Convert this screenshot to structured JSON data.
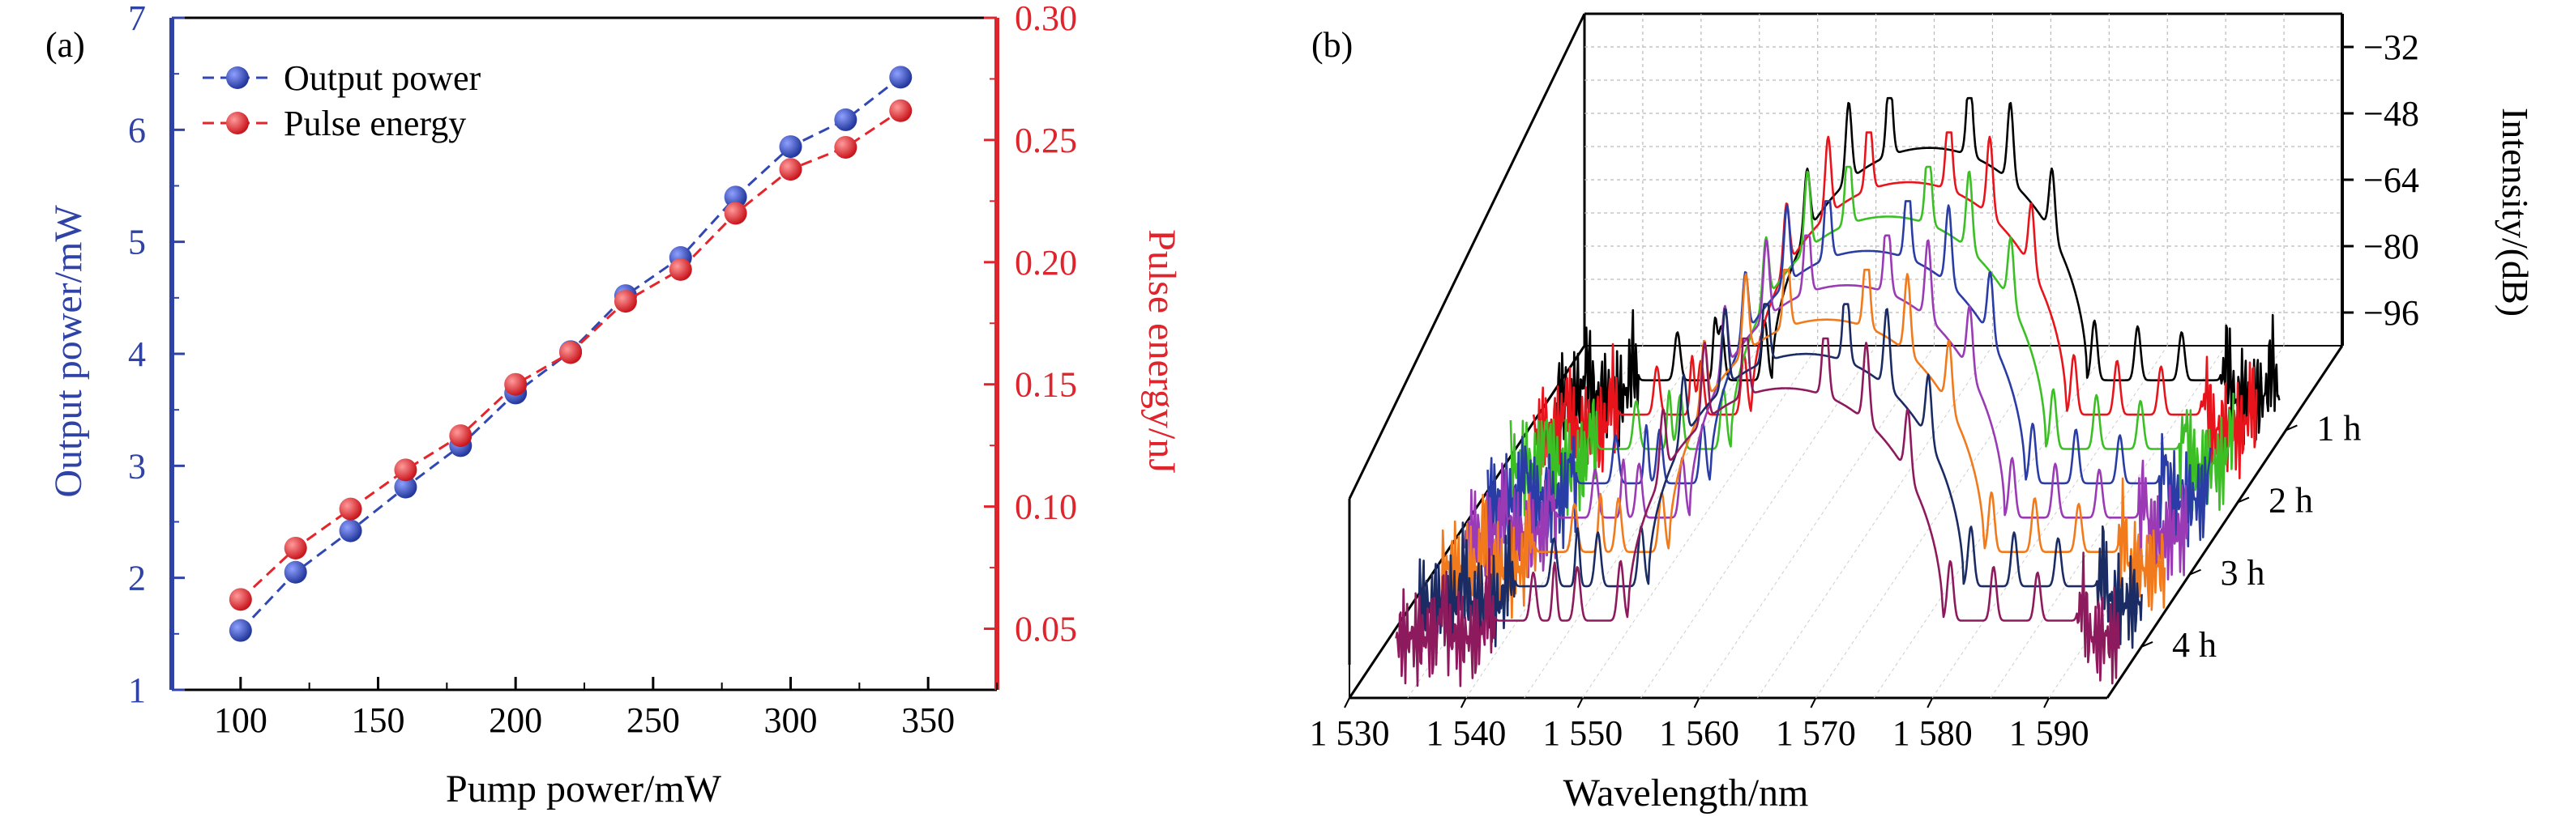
{
  "panel_labels": [
    "(a)",
    "(b)"
  ],
  "chart_data": [
    {
      "type": "line",
      "panel": "(a)",
      "title": "",
      "xlabel": "Pump power/mW",
      "ylabel": "Output power/mW",
      "y2label": "Pulse energy/nJ",
      "xlim": [
        75,
        375
      ],
      "ylim": [
        1,
        7
      ],
      "y2lim": [
        0.025,
        0.3
      ],
      "xticks": [
        "100",
        "150",
        "200",
        "250",
        "300",
        "350"
      ],
      "yticks": [
        "1",
        "2",
        "3",
        "4",
        "5",
        "6",
        "7"
      ],
      "y2ticks": [
        "0.05",
        "0.10",
        "0.15",
        "0.20",
        "0.25",
        "0.30"
      ],
      "legend_position": "top-left",
      "colors": {
        "left_axis": "#2f43a6",
        "right_axis": "#e0242b",
        "output": "#3148b3",
        "pulse": "#e4262c"
      },
      "x": [
        100,
        120,
        140,
        160,
        180,
        200,
        220,
        240,
        260,
        280,
        300,
        320,
        340
      ],
      "series": [
        {
          "name": "Output power",
          "axis": "left",
          "values": [
            1.53,
            2.05,
            2.42,
            2.81,
            3.18,
            3.65,
            4.02,
            4.52,
            4.86,
            5.4,
            5.85,
            6.09,
            6.47
          ]
        },
        {
          "name": "Pulse energy",
          "axis": "right",
          "values": [
            0.062,
            0.083,
            0.099,
            0.115,
            0.129,
            0.15,
            0.163,
            0.184,
            0.197,
            0.22,
            0.238,
            0.247,
            0.262
          ]
        }
      ]
    },
    {
      "type": "line",
      "panel": "(b)",
      "title": "",
      "xlabel": "Wavelength/nm",
      "zlabel": "Intensity/(dB)",
      "xlim": [
        1530,
        1595
      ],
      "xticks": [
        "1 530",
        "1 540",
        "1 550",
        "1 560",
        "1 570",
        "1 580",
        "1 590"
      ],
      "zticks": [
        "-32",
        "-48",
        "-64",
        "-80",
        "-96"
      ],
      "zlim": [
        -104,
        -24
      ],
      "depth_ticks": [
        "1 h",
        "2 h",
        "3 h",
        "4 h"
      ],
      "series_colors": [
        "#000000",
        "#e8141c",
        "#3bbf25",
        "#2a3ca6",
        "#9a3ab5",
        "#f07a1c",
        "#1b2b63",
        "#8e1a5e"
      ]
    }
  ]
}
